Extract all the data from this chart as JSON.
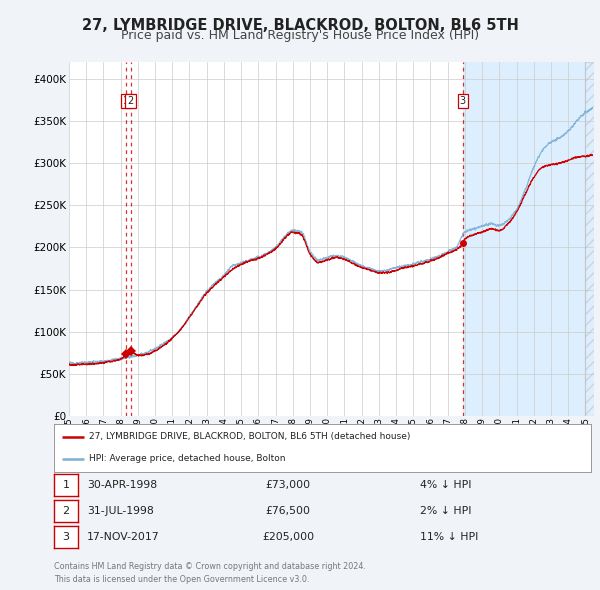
{
  "title": "27, LYMBRIDGE DRIVE, BLACKROD, BOLTON, BL6 5TH",
  "subtitle": "Price paid vs. HM Land Registry's House Price Index (HPI)",
  "title_fontsize": 10.5,
  "subtitle_fontsize": 9,
  "hpi_color": "#7ab0d4",
  "price_color": "#cc0000",
  "bg_color": "#f0f4f8",
  "plot_bg": "#ffffff",
  "highlight_bg": "#ddeeff",
  "ylim": [
    0,
    420000
  ],
  "yticks": [
    0,
    50000,
    100000,
    150000,
    200000,
    250000,
    300000,
    350000,
    400000
  ],
  "xlim_start": 1995.0,
  "xlim_end": 2025.5,
  "highlight_start": 2017.88,
  "transactions": [
    {
      "label": "1",
      "date": "30-APR-1998",
      "price": 73000,
      "x": 1998.33,
      "hpi_pct": "4% ↓ HPI",
      "marker": "D"
    },
    {
      "label": "2",
      "date": "31-JUL-1998",
      "price": 76500,
      "x": 1998.58,
      "hpi_pct": "2% ↓ HPI",
      "marker": "D"
    },
    {
      "label": "3",
      "date": "17-NOV-2017",
      "price": 205000,
      "x": 2017.88,
      "hpi_pct": "11% ↓ HPI",
      "marker": "o"
    }
  ],
  "legend_line1": "27, LYMBRIDGE DRIVE, BLACKROD, BOLTON, BL6 5TH (detached house)",
  "legend_line2": "HPI: Average price, detached house, Bolton",
  "footer1": "Contains HM Land Registry data © Crown copyright and database right 2024.",
  "footer2": "This data is licensed under the Open Government Licence v3.0."
}
